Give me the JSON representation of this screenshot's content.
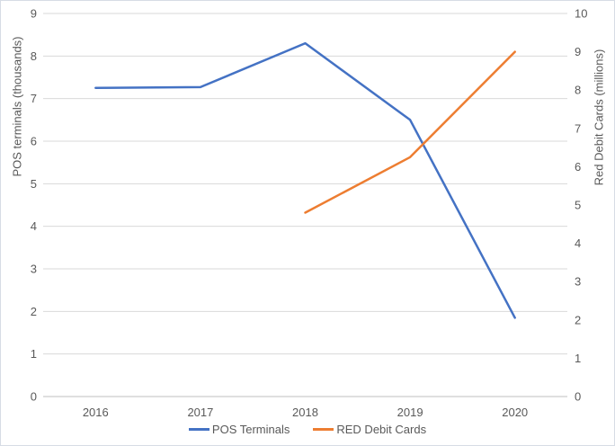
{
  "chart_data": {
    "type": "line",
    "categories": [
      "2016",
      "2017",
      "2018",
      "2019",
      "2020"
    ],
    "series": [
      {
        "name": "POS Terminals",
        "axis": "left",
        "color": "#4472C4",
        "values": [
          7.25,
          7.27,
          8.3,
          6.5,
          1.85
        ]
      },
      {
        "name": "RED Debit Cards",
        "axis": "right",
        "color": "#ED7D31",
        "values": [
          null,
          null,
          4.8,
          6.25,
          9.0
        ]
      }
    ],
    "left_axis": {
      "title": "POS terminals (thousands)",
      "min": 0,
      "max": 9,
      "step": 1
    },
    "right_axis": {
      "title": "Red Debit Cards (millions)",
      "min": 0,
      "max": 10,
      "step": 1
    },
    "grid": "horizontal",
    "legend_position": "bottom-center",
    "colors": {
      "gridline": "#D9D9D9",
      "axis_line": "#BFBFBF",
      "tick_text": "#595959"
    }
  }
}
